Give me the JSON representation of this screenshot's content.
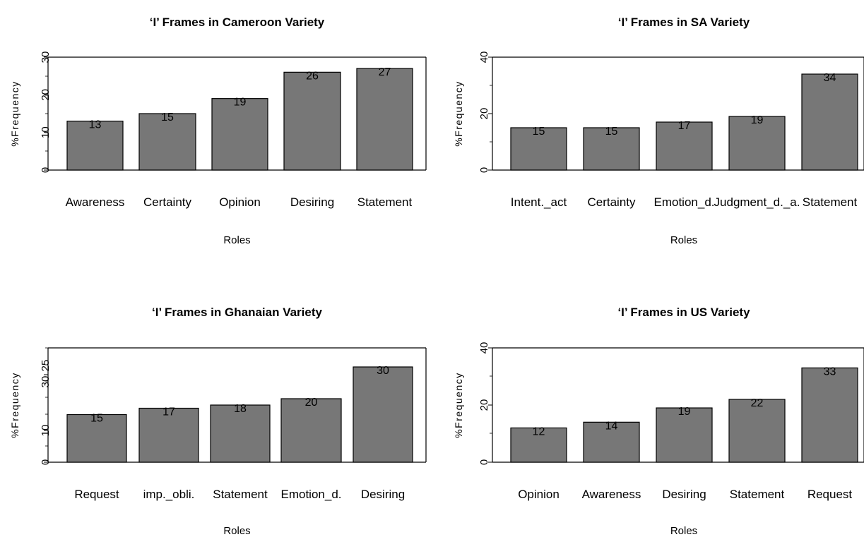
{
  "chart_data": [
    {
      "type": "bar",
      "title": "‘I’ Frames in Cameroon Variety",
      "categories": [
        "Awareness",
        "Certainty",
        "Opinion",
        "Desiring",
        "Statement"
      ],
      "values": [
        13,
        15,
        19,
        26,
        27
      ],
      "xlabel": "Roles",
      "ylabel": "%Frequency",
      "ylim": [
        0,
        30
      ],
      "yticks": [
        "0",
        "10",
        "20",
        "30"
      ],
      "bar_color": "#777777",
      "grid": false
    },
    {
      "type": "bar",
      "title": "‘I’ Frames in SA Variety",
      "categories": [
        "Intent._act",
        "Certainty",
        "Emotion_d.",
        "Judgment_d._a.",
        "Statement"
      ],
      "values": [
        15,
        15,
        17,
        19,
        34
      ],
      "xlabel": "Roles",
      "ylabel": "%Frequency",
      "ylim": [
        0,
        40
      ],
      "yticks": [
        "0",
        "20",
        "40"
      ],
      "bar_color": "#777777",
      "grid": false
    },
    {
      "type": "bar",
      "title": "‘I’ Frames in Ghanaian Variety",
      "categories": [
        "Request",
        "imp._obli.",
        "Statement",
        "Emotion_d.",
        "Desiring"
      ],
      "values": [
        15,
        17,
        18,
        20,
        30
      ],
      "xlabel": "Roles",
      "ylabel": "%Frequency",
      "ylim": [
        0,
        36
      ],
      "yticks": [
        "0",
        "10",
        "25",
        "30"
      ],
      "bar_color": "#777777",
      "grid": false
    },
    {
      "type": "bar",
      "title": "‘I’ Frames in US Variety",
      "categories": [
        "Opinion",
        "Awareness",
        "Desiring",
        "Statement",
        "Request"
      ],
      "values": [
        12,
        14,
        19,
        22,
        33
      ],
      "xlabel": "Roles",
      "ylabel": "%Frequency",
      "ylim": [
        0,
        40
      ],
      "yticks": [
        "0",
        "20",
        "40"
      ],
      "bar_color": "#777777",
      "grid": false
    }
  ]
}
